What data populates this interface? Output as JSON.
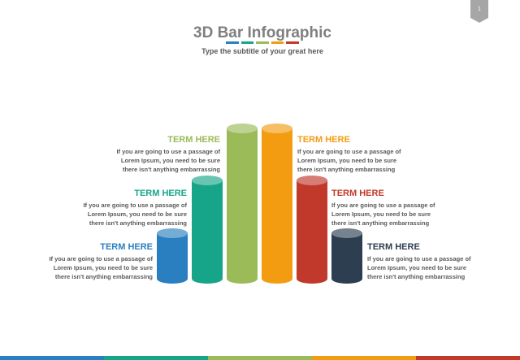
{
  "page": {
    "number": "1"
  },
  "header": {
    "title": "3D Bar Infographic",
    "subtitle": "Type the subtitle of your great here"
  },
  "colors": {
    "blue": "#2a7fc0",
    "teal": "#17a589",
    "green": "#9bbb59",
    "orange": "#f39c12",
    "red": "#c0392b",
    "navy": "#2c3e50",
    "title_gray": "#7f7f7f",
    "text_gray": "#595959"
  },
  "title_stripes": [
    "#2a7fc0",
    "#17a589",
    "#9bbb59",
    "#f39c12",
    "#c0392b"
  ],
  "bars": [
    {
      "color": "#2a7fc0",
      "level": 1
    },
    {
      "color": "#17a589",
      "level": 2
    },
    {
      "color": "#9bbb59",
      "level": 3
    },
    {
      "color": "#f39c12",
      "level": 3
    },
    {
      "color": "#c0392b",
      "level": 2
    },
    {
      "color": "#2c3e50",
      "level": 1
    }
  ],
  "terms": [
    {
      "heading": "TERM HERE",
      "description": "If you are going to use a passage of\nLorem Ipsum, you need to be sure\nthere isn't anything embarrassing"
    },
    {
      "heading": "TERM HERE",
      "description": "If you are going to use a passage of\nLorem Ipsum, you need to be sure\nthere isn't anything embarrassing"
    },
    {
      "heading": "TERM HERE",
      "description": "If you are going to use a passage of\nLorem Ipsum, you need to be sure\nthere isn't anything embarrassing"
    },
    {
      "heading": "TERM HERE",
      "description": "If you are going to use a passage of\nLorem Ipsum, you need to be sure\nthere isn't anything embarrassing"
    },
    {
      "heading": "TERM HERE",
      "description": "If you are going to use a passage of\nLorem Ipsum, you need to be sure\nthere isn't anything embarrassing"
    },
    {
      "heading": "TERM HERE",
      "description": "If you are going to use a passage of\nLorem Ipsum, you need to be sure\nthere isn't anything embarrassing"
    }
  ],
  "bottom_stripes": [
    "#2a7fc0",
    "#17a589",
    "#9bbb59",
    "#f39c12",
    "#c0392b"
  ]
}
